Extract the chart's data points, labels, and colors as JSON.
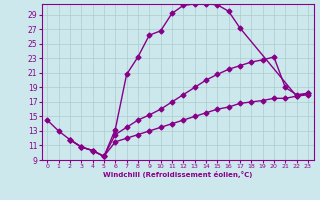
{
  "xlabel": "Windchill (Refroidissement éolien,°C)",
  "bg_color": "#cde8ed",
  "line_color": "#880088",
  "grid_color": "#aacccc",
  "xlim": [
    -0.5,
    23.5
  ],
  "ylim": [
    9,
    30.5
  ],
  "yticks": [
    9,
    11,
    13,
    15,
    17,
    19,
    21,
    23,
    25,
    27,
    29
  ],
  "xticks": [
    0,
    1,
    2,
    3,
    4,
    5,
    6,
    7,
    8,
    9,
    10,
    11,
    12,
    13,
    14,
    15,
    16,
    17,
    18,
    19,
    20,
    21,
    22,
    23
  ],
  "curve1_x": [
    0,
    1,
    2,
    3,
    4,
    5,
    6,
    7,
    8,
    9,
    10,
    11,
    12,
    13,
    14,
    15,
    16,
    17,
    22,
    23
  ],
  "curve1_y": [
    14.5,
    13.0,
    11.8,
    10.8,
    10.3,
    9.5,
    13.2,
    20.8,
    23.2,
    26.2,
    26.8,
    29.2,
    30.3,
    30.5,
    30.5,
    30.4,
    29.5,
    27.2,
    17.8,
    18.0
  ],
  "curve2_x": [
    2,
    3,
    4,
    5,
    6,
    7,
    8,
    9,
    10,
    11,
    12,
    13,
    14,
    15,
    16,
    17,
    18,
    19,
    20,
    21,
    22,
    23
  ],
  "curve2_y": [
    11.8,
    10.8,
    10.3,
    9.5,
    12.5,
    13.5,
    14.5,
    15.2,
    16.0,
    17.0,
    18.0,
    19.0,
    20.0,
    20.8,
    21.5,
    22.0,
    22.5,
    22.8,
    23.2,
    19.0,
    18.0,
    18.2
  ],
  "curve3_x": [
    2,
    3,
    4,
    5,
    6,
    7,
    8,
    9,
    10,
    11,
    12,
    13,
    14,
    15,
    16,
    17,
    18,
    19,
    20,
    21,
    22,
    23
  ],
  "curve3_y": [
    11.8,
    10.8,
    10.3,
    9.5,
    11.5,
    12.0,
    12.5,
    13.0,
    13.5,
    14.0,
    14.5,
    15.0,
    15.5,
    16.0,
    16.3,
    16.8,
    17.0,
    17.2,
    17.5,
    17.5,
    17.8,
    18.2
  ],
  "marker": "D",
  "marker_size": 2.5,
  "linewidth": 1.0
}
